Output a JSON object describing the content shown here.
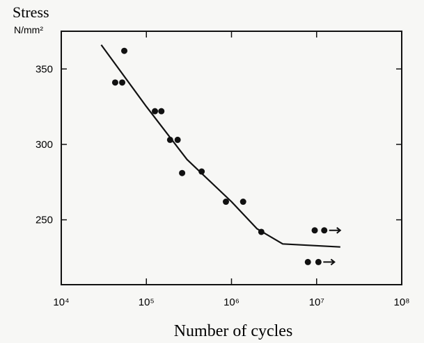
{
  "chart_data": {
    "type": "scatter",
    "ylabel": "Stress",
    "yunit": "N/mm²",
    "xlabel": "Number of cycles",
    "xscale": "log",
    "xlim": [
      10000,
      100000000
    ],
    "xticks": [
      {
        "value": 10000,
        "label": "10⁴"
      },
      {
        "value": 100000,
        "label": "10⁵"
      },
      {
        "value": 1000000,
        "label": "10⁶"
      },
      {
        "value": 10000000,
        "label": "10⁷"
      },
      {
        "value": 100000000,
        "label": "10⁸"
      }
    ],
    "ylim": [
      207,
      375
    ],
    "yticks": [
      250,
      300,
      350
    ],
    "series": [
      {
        "type": "scatter",
        "color": "#111111",
        "x": [
          43000,
          52000,
          55000,
          126000,
          150000,
          190000,
          233000,
          263000,
          446000,
          860000,
          1370000,
          2240000,
          7900000,
          10500000,
          9500000,
          12300000
        ],
        "values": [
          341,
          341,
          362,
          322,
          322,
          303,
          303,
          281,
          282,
          262,
          262,
          242,
          222,
          222,
          243,
          243
        ],
        "runout": [
          false,
          false,
          false,
          false,
          false,
          false,
          false,
          false,
          false,
          false,
          false,
          false,
          false,
          true,
          false,
          true
        ]
      },
      {
        "type": "line",
        "color": "#111111",
        "x": [
          29500,
          100000,
          300000,
          1000000,
          2000000,
          4000000,
          19000000
        ],
        "values": [
          366,
          325,
          290,
          262,
          244,
          234,
          232
        ]
      }
    ]
  }
}
